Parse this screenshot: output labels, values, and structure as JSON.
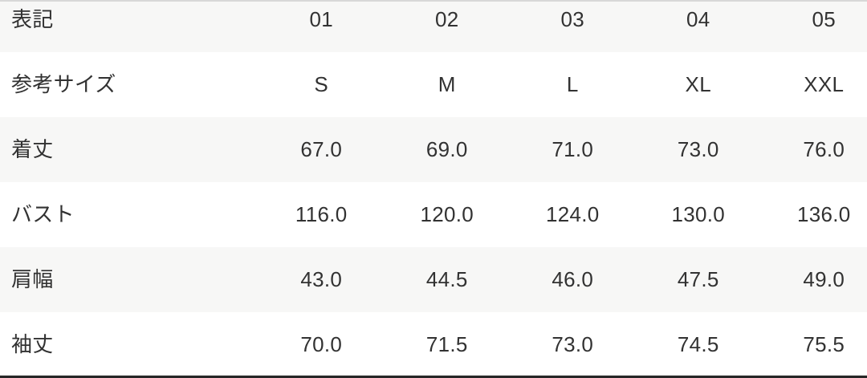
{
  "size_chart": {
    "rows": [
      {
        "label": "表記",
        "values": [
          "01",
          "02",
          "03",
          "04",
          "05"
        ]
      },
      {
        "label": "参考サイズ",
        "values": [
          "S",
          "M",
          "L",
          "XL",
          "XXL"
        ]
      },
      {
        "label": "着丈",
        "values": [
          "67.0",
          "69.0",
          "71.0",
          "73.0",
          "76.0"
        ]
      },
      {
        "label": "バスト",
        "values": [
          "116.0",
          "120.0",
          "124.0",
          "130.0",
          "136.0"
        ]
      },
      {
        "label": "肩幅",
        "values": [
          "43.0",
          "44.5",
          "46.0",
          "47.5",
          "49.0"
        ]
      },
      {
        "label": "袖丈",
        "values": [
          "70.0",
          "71.5",
          "73.0",
          "74.5",
          "75.5"
        ]
      }
    ],
    "colors": {
      "row_alt_bg": "#f7f7f6",
      "row_bg": "#ffffff",
      "text": "#323232",
      "top_border": "#d8d8d8",
      "bottom_border": "#262626"
    }
  }
}
